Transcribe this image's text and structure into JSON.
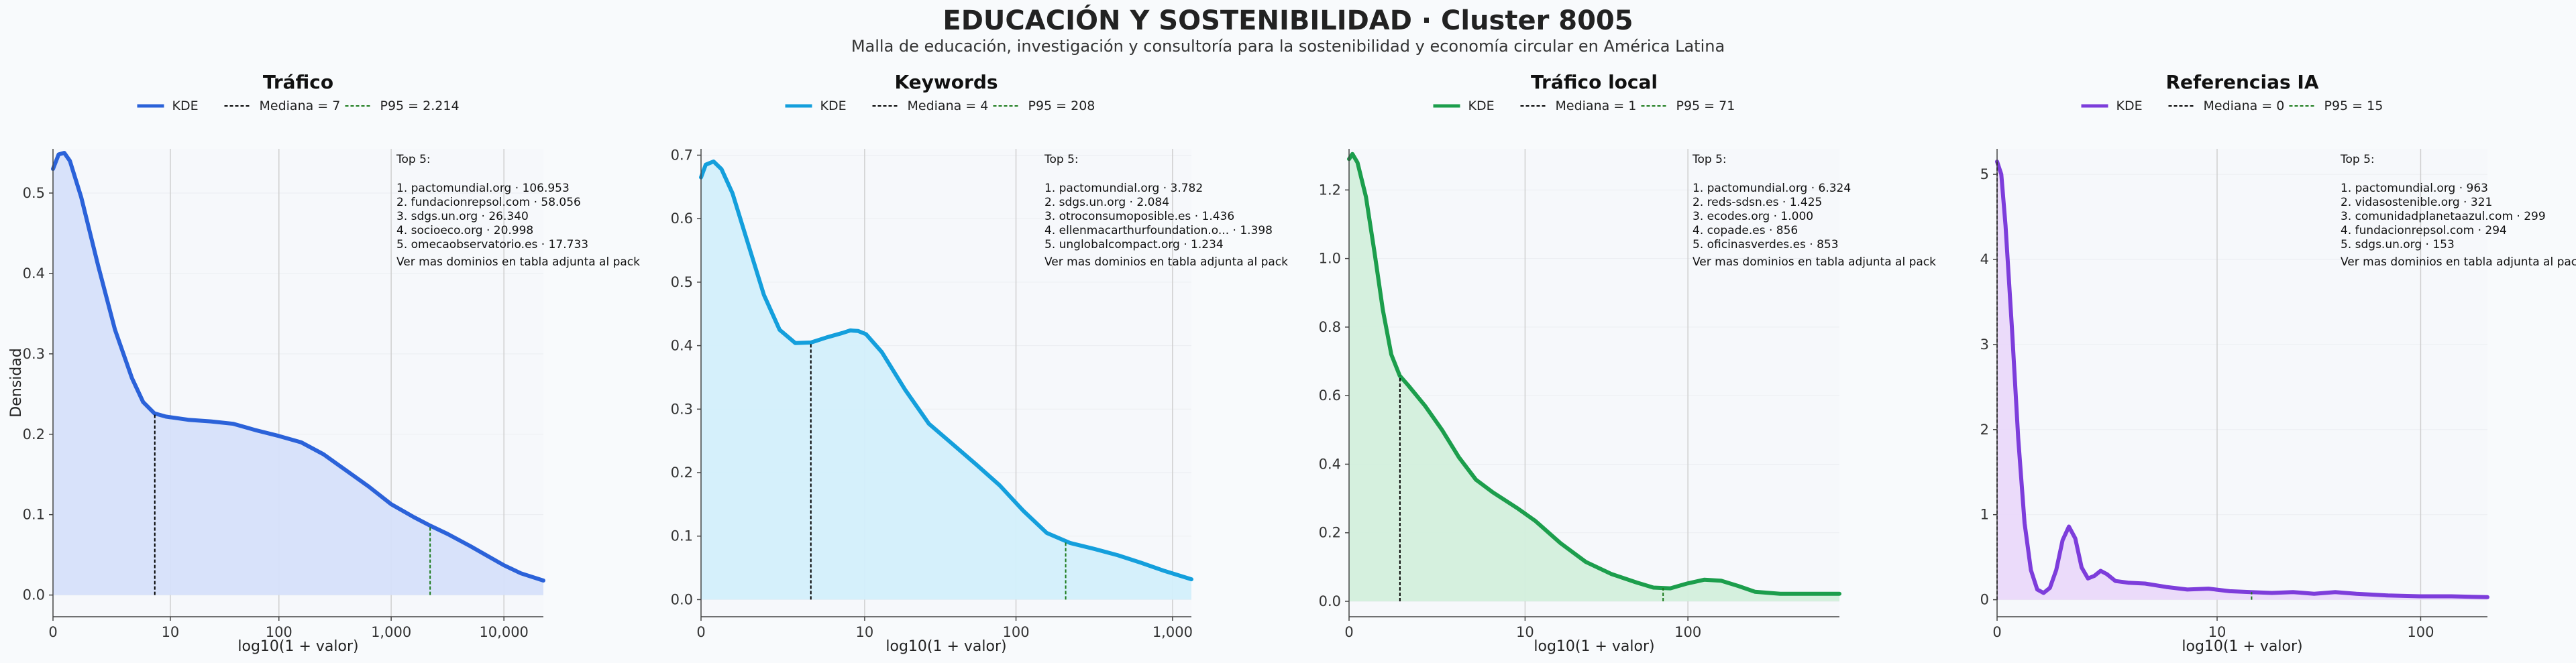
{
  "title": "EDUCACIÓN Y SOSTENIBILIDAD · Cluster 8005",
  "subtitle": "Malla de educación, investigación y consultoría para la sostenibilidad y economía circular en América Latina",
  "colors": {
    "background": "#f8fafc",
    "axis": "#444444",
    "grid": "#cfcfcf",
    "median": "#000000",
    "p95": "#1a7a1a"
  },
  "chart_data": [
    {
      "type": "area",
      "title": "Tráfico",
      "xlabel": "log10(1 + valor)",
      "ylabel": "Densidad",
      "color": "#2b62d9",
      "fill": "#d6e0fa",
      "legend": {
        "kde": "KDE",
        "median": "Mediana = 7",
        "p95": "P95 = 2.214"
      },
      "median_value": 7,
      "p95_value": 2214,
      "x_ticks": [
        {
          "label": "0",
          "x": 0
        },
        {
          "label": "10",
          "x": 1.041
        },
        {
          "label": "100",
          "x": 2.004
        },
        {
          "label": "1,000",
          "x": 3.0
        },
        {
          "label": "10,000",
          "x": 4.0
        }
      ],
      "y_ticks": [
        0.0,
        0.1,
        0.2,
        0.3,
        0.4,
        0.5
      ],
      "xlim": [
        0,
        4.35
      ],
      "ylim": [
        -0.027,
        0.555
      ],
      "kde": [
        [
          0,
          0.53
        ],
        [
          0.05,
          0.548
        ],
        [
          0.1,
          0.55
        ],
        [
          0.15,
          0.54
        ],
        [
          0.25,
          0.495
        ],
        [
          0.4,
          0.41
        ],
        [
          0.55,
          0.33
        ],
        [
          0.7,
          0.27
        ],
        [
          0.8,
          0.24
        ],
        [
          0.9,
          0.226
        ],
        [
          1.0,
          0.222
        ],
        [
          1.2,
          0.218
        ],
        [
          1.4,
          0.216
        ],
        [
          1.6,
          0.213
        ],
        [
          1.8,
          0.205
        ],
        [
          2.0,
          0.198
        ],
        [
          2.2,
          0.19
        ],
        [
          2.4,
          0.175
        ],
        [
          2.6,
          0.155
        ],
        [
          2.8,
          0.135
        ],
        [
          3.0,
          0.113
        ],
        [
          3.2,
          0.097
        ],
        [
          3.35,
          0.086
        ],
        [
          3.5,
          0.076
        ],
        [
          3.7,
          0.061
        ],
        [
          3.85,
          0.049
        ],
        [
          4.0,
          0.037
        ],
        [
          4.15,
          0.027
        ],
        [
          4.35,
          0.018
        ]
      ],
      "top5": [
        "Top 5:",
        "1. pactomundial.org · 106.953",
        "2. fundacionrepsol.com · 58.056",
        "3. sdgs.un.org · 26.340",
        "4. socioeco.org · 20.998",
        "5. omecaobservatorio.es · 17.733"
      ],
      "note": "Ver mas dominios en tabla adjunta al pack"
    },
    {
      "type": "area",
      "title": "Keywords",
      "xlabel": "log10(1 + valor)",
      "ylabel": "",
      "color": "#149fdc",
      "fill": "#d3effb",
      "legend": {
        "kde": "KDE",
        "median": "Mediana = 4",
        "p95": "P95 = 208"
      },
      "median_value": 4,
      "p95_value": 208,
      "x_ticks": [
        {
          "label": "0",
          "x": 0
        },
        {
          "label": "10",
          "x": 1.041
        },
        {
          "label": "100",
          "x": 2.004
        },
        {
          "label": "1,000",
          "x": 3.0
        }
      ],
      "y_ticks": [
        0.0,
        0.1,
        0.2,
        0.3,
        0.4,
        0.5,
        0.6,
        0.7
      ],
      "xlim": [
        0,
        3.12
      ],
      "ylim": [
        -0.027,
        0.71
      ],
      "kde": [
        [
          0,
          0.665
        ],
        [
          0.03,
          0.685
        ],
        [
          0.08,
          0.69
        ],
        [
          0.13,
          0.678
        ],
        [
          0.2,
          0.64
        ],
        [
          0.3,
          0.56
        ],
        [
          0.4,
          0.48
        ],
        [
          0.5,
          0.425
        ],
        [
          0.6,
          0.404
        ],
        [
          0.7,
          0.405
        ],
        [
          0.8,
          0.413
        ],
        [
          0.9,
          0.42
        ],
        [
          0.95,
          0.424
        ],
        [
          1.0,
          0.423
        ],
        [
          1.05,
          0.418
        ],
        [
          1.15,
          0.39
        ],
        [
          1.3,
          0.33
        ],
        [
          1.45,
          0.277
        ],
        [
          1.6,
          0.245
        ],
        [
          1.75,
          0.213
        ],
        [
          1.9,
          0.18
        ],
        [
          2.05,
          0.14
        ],
        [
          2.2,
          0.105
        ],
        [
          2.35,
          0.089
        ],
        [
          2.5,
          0.08
        ],
        [
          2.65,
          0.07
        ],
        [
          2.8,
          0.058
        ],
        [
          2.95,
          0.045
        ],
        [
          3.12,
          0.032
        ]
      ],
      "top5": [
        "Top 5:",
        "1. pactomundial.org · 3.782",
        "2. sdgs.un.org · 2.084",
        "3. otroconsumoposible.es · 1.436",
        "4. ellenmacarthurfoundation.o... · 1.398",
        "5. unglobalcompact.org · 1.234"
      ],
      "note": "Ver mas dominios en tabla adjunta al pack"
    },
    {
      "type": "area",
      "title": "Tráfico local",
      "xlabel": "log10(1 + valor)",
      "ylabel": "",
      "color": "#1c9e4c",
      "fill": "#d3efdc",
      "legend": {
        "kde": "KDE",
        "median": "Mediana = 1",
        "p95": "P95 = 71"
      },
      "median_value": 1,
      "p95_value": 71,
      "x_ticks": [
        {
          "label": "0",
          "x": 0
        },
        {
          "label": "10",
          "x": 1.041
        },
        {
          "label": "100",
          "x": 2.004
        }
      ],
      "y_ticks": [
        0.0,
        0.2,
        0.4,
        0.6,
        0.8,
        1.0,
        1.2
      ],
      "xlim": [
        0,
        2.9
      ],
      "ylim": [
        -0.045,
        1.32
      ],
      "kde": [
        [
          0,
          1.29
        ],
        [
          0.02,
          1.305
        ],
        [
          0.05,
          1.28
        ],
        [
          0.1,
          1.18
        ],
        [
          0.15,
          1.02
        ],
        [
          0.2,
          0.85
        ],
        [
          0.25,
          0.72
        ],
        [
          0.3,
          0.658
        ],
        [
          0.35,
          0.63
        ],
        [
          0.45,
          0.57
        ],
        [
          0.55,
          0.5
        ],
        [
          0.65,
          0.42
        ],
        [
          0.75,
          0.355
        ],
        [
          0.85,
          0.318
        ],
        [
          1.0,
          0.27
        ],
        [
          1.1,
          0.235
        ],
        [
          1.25,
          0.17
        ],
        [
          1.4,
          0.115
        ],
        [
          1.55,
          0.08
        ],
        [
          1.7,
          0.055
        ],
        [
          1.8,
          0.04
        ],
        [
          1.9,
          0.038
        ],
        [
          2.0,
          0.052
        ],
        [
          2.1,
          0.063
        ],
        [
          2.2,
          0.06
        ],
        [
          2.3,
          0.045
        ],
        [
          2.4,
          0.028
        ],
        [
          2.55,
          0.022
        ],
        [
          2.9,
          0.022
        ]
      ],
      "top5": [
        "Top 5:",
        "1. pactomundial.org · 6.324",
        "2. reds-sdsn.es · 1.425",
        "3. ecodes.org · 1.000",
        "4. copade.es · 856",
        "5. oficinasverdes.es · 853"
      ],
      "note": "Ver mas dominios en tabla adjunta al pack"
    },
    {
      "type": "area",
      "title": "Referencias IA",
      "xlabel": "log10(1 + valor)",
      "ylabel": "",
      "color": "#7d3ddb",
      "fill": "#ead9fa",
      "legend": {
        "kde": "KDE",
        "median": "Mediana = 0",
        "p95": "P95 = 15"
      },
      "median_value": 0,
      "p95_value": 15,
      "x_ticks": [
        {
          "label": "0",
          "x": 0
        },
        {
          "label": "10",
          "x": 1.041
        },
        {
          "label": "100",
          "x": 2.004
        }
      ],
      "y_ticks": [
        0,
        1,
        2,
        3,
        4,
        5
      ],
      "xlim": [
        0,
        2.32
      ],
      "ylim": [
        -0.2,
        5.3
      ],
      "kde": [
        [
          0,
          5.15
        ],
        [
          0.02,
          5.0
        ],
        [
          0.04,
          4.4
        ],
        [
          0.07,
          3.2
        ],
        [
          0.1,
          1.9
        ],
        [
          0.13,
          0.9
        ],
        [
          0.16,
          0.35
        ],
        [
          0.19,
          0.12
        ],
        [
          0.22,
          0.08
        ],
        [
          0.25,
          0.14
        ],
        [
          0.28,
          0.35
        ],
        [
          0.31,
          0.7
        ],
        [
          0.34,
          0.86
        ],
        [
          0.37,
          0.72
        ],
        [
          0.4,
          0.38
        ],
        [
          0.43,
          0.25
        ],
        [
          0.46,
          0.28
        ],
        [
          0.49,
          0.34
        ],
        [
          0.52,
          0.3
        ],
        [
          0.56,
          0.22
        ],
        [
          0.62,
          0.2
        ],
        [
          0.7,
          0.19
        ],
        [
          0.8,
          0.15
        ],
        [
          0.9,
          0.12
        ],
        [
          1.0,
          0.13
        ],
        [
          1.1,
          0.1
        ],
        [
          1.2,
          0.09
        ],
        [
          1.3,
          0.08
        ],
        [
          1.4,
          0.09
        ],
        [
          1.5,
          0.07
        ],
        [
          1.6,
          0.09
        ],
        [
          1.7,
          0.07
        ],
        [
          1.85,
          0.05
        ],
        [
          2.0,
          0.04
        ],
        [
          2.15,
          0.04
        ],
        [
          2.32,
          0.03
        ]
      ],
      "top5": [
        "Top 5:",
        "1. pactomundial.org · 963",
        "2. vidasostenible.org · 321",
        "3. comunidadplanetaazul.com · 299",
        "4. fundacionrepsol.com · 294",
        "5. sdgs.un.org · 153"
      ],
      "note": "Ver mas dominios en tabla adjunta al pack"
    }
  ]
}
